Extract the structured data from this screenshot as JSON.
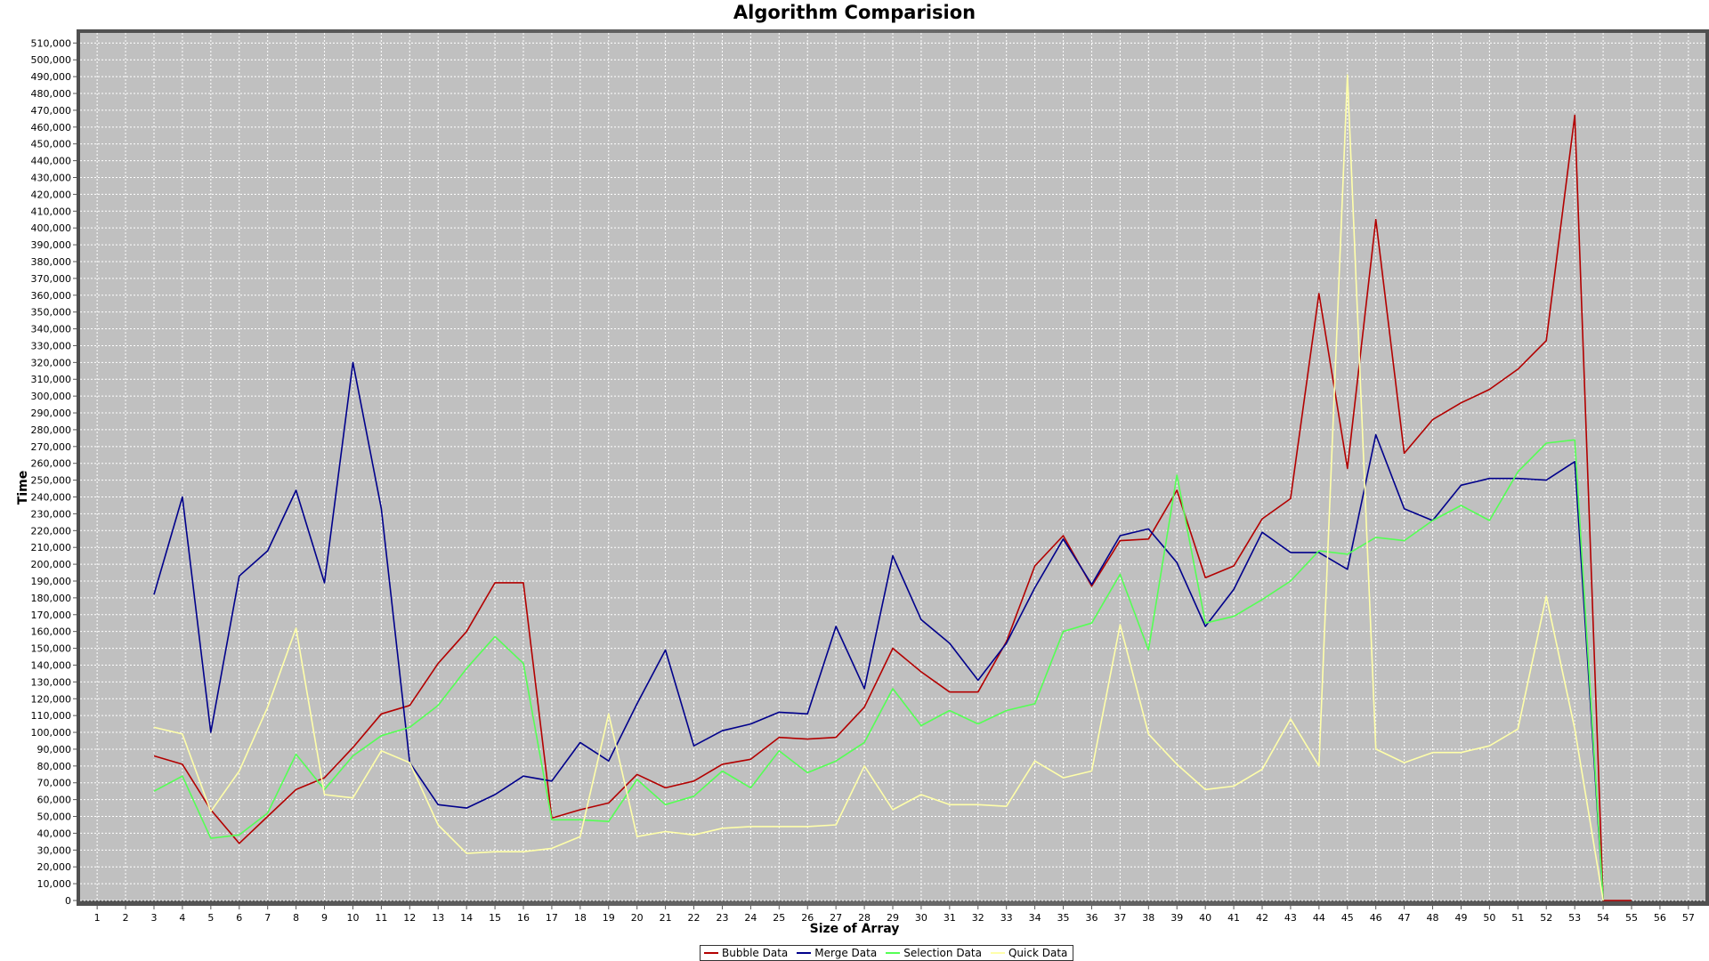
{
  "chart_data": {
    "type": "line",
    "title": "Algorithm Comparision",
    "xlabel": "Size of Array",
    "ylabel": "Time",
    "x": [
      1,
      2,
      3,
      4,
      5,
      6,
      7,
      8,
      9,
      10,
      11,
      12,
      13,
      14,
      15,
      16,
      17,
      18,
      19,
      20,
      21,
      22,
      23,
      24,
      25,
      26,
      27,
      28,
      29,
      30,
      31,
      32,
      33,
      34,
      35,
      36,
      37,
      38,
      39,
      40,
      41,
      42,
      43,
      44,
      45,
      46,
      47,
      48,
      49,
      50,
      51,
      52,
      53,
      54,
      55,
      56,
      57
    ],
    "xlim": [
      0.4,
      57.6
    ],
    "ylim": [
      0,
      516000
    ],
    "ytick_step": 10000,
    "grid": true,
    "legend_position": "bottom-center",
    "series": [
      {
        "name": "Bubble Data",
        "color": "#b30000",
        "x": [
          3,
          4,
          5,
          6,
          7,
          8,
          9,
          10,
          11,
          12,
          13,
          14,
          15,
          16,
          17,
          18,
          19,
          20,
          21,
          22,
          23,
          24,
          25,
          26,
          27,
          28,
          29,
          30,
          31,
          32,
          33,
          34,
          35,
          36,
          37,
          38,
          39,
          40,
          41,
          42,
          43,
          44,
          45,
          46,
          47,
          48,
          49,
          50,
          51,
          52,
          53,
          54,
          55
        ],
        "values": [
          86000,
          81000,
          54000,
          34000,
          50000,
          66000,
          73000,
          91000,
          111000,
          116000,
          141000,
          160000,
          189000,
          189000,
          49000,
          54000,
          58000,
          75000,
          67000,
          71000,
          81000,
          84000,
          97000,
          96000,
          97000,
          115000,
          150000,
          136000,
          124000,
          124000,
          154000,
          199000,
          217000,
          187000,
          214000,
          215000,
          244000,
          192000,
          199000,
          227000,
          239000,
          361000,
          257000,
          405000,
          266000,
          286000,
          296000,
          304000,
          316000,
          333000,
          467000,
          0,
          0
        ]
      },
      {
        "name": "Merge Data",
        "color": "#00008b",
        "x": [
          3,
          4,
          5,
          6,
          7,
          8,
          9,
          10,
          11,
          12,
          13,
          14,
          15,
          16,
          17,
          18,
          19,
          20,
          21,
          22,
          23,
          24,
          25,
          26,
          27,
          28,
          29,
          30,
          31,
          32,
          33,
          34,
          35,
          36,
          37,
          38,
          39,
          40,
          41,
          42,
          43,
          44,
          45,
          46,
          47,
          48,
          49,
          50,
          51,
          52,
          53,
          54
        ],
        "values": [
          182000,
          240000,
          100000,
          193000,
          208000,
          244000,
          189000,
          320000,
          233000,
          82000,
          57000,
          55000,
          63000,
          74000,
          71000,
          94000,
          83000,
          117000,
          149000,
          92000,
          101000,
          105000,
          112000,
          111000,
          163000,
          126000,
          205000,
          167000,
          153000,
          131000,
          153000,
          186000,
          215000,
          188000,
          217000,
          221000,
          201000,
          163000,
          185000,
          219000,
          207000,
          207000,
          197000,
          277000,
          233000,
          226000,
          247000,
          251000,
          251000,
          250000,
          261000,
          0
        ]
      },
      {
        "name": "Selection Data",
        "color": "#55ff55",
        "x": [
          3,
          4,
          5,
          6,
          7,
          8,
          9,
          10,
          11,
          12,
          13,
          14,
          15,
          16,
          17,
          18,
          19,
          20,
          21,
          22,
          23,
          24,
          25,
          26,
          27,
          28,
          29,
          30,
          31,
          32,
          33,
          34,
          35,
          36,
          37,
          38,
          39,
          40,
          41,
          42,
          43,
          44,
          45,
          46,
          47,
          48,
          49,
          50,
          51,
          52,
          53,
          54
        ],
        "values": [
          65000,
          74000,
          37000,
          39000,
          52000,
          87000,
          66000,
          86000,
          98000,
          103000,
          116000,
          138000,
          157000,
          141000,
          48000,
          48000,
          47000,
          72000,
          57000,
          62000,
          77000,
          67000,
          89000,
          76000,
          83000,
          94000,
          126000,
          104000,
          113000,
          105000,
          113000,
          117000,
          160000,
          165000,
          194000,
          149000,
          253000,
          165000,
          169000,
          179000,
          190000,
          208000,
          206000,
          216000,
          214000,
          226000,
          235000,
          226000,
          255000,
          272000,
          274000,
          0
        ]
      },
      {
        "name": "Quick Data",
        "color": "#ffffaa",
        "x": [
          3,
          4,
          5,
          6,
          7,
          8,
          9,
          10,
          11,
          12,
          13,
          14,
          15,
          16,
          17,
          18,
          19,
          20,
          21,
          22,
          23,
          24,
          25,
          26,
          27,
          28,
          29,
          30,
          31,
          32,
          33,
          34,
          35,
          36,
          37,
          38,
          39,
          40,
          41,
          42,
          43,
          44,
          45,
          46,
          47,
          48,
          49,
          50,
          51,
          52,
          53,
          54
        ],
        "values": [
          103000,
          99000,
          53000,
          77000,
          115000,
          162000,
          63000,
          61000,
          89000,
          82000,
          45000,
          28000,
          29000,
          29000,
          31000,
          38000,
          111000,
          38000,
          41000,
          39000,
          43000,
          44000,
          44000,
          44000,
          45000,
          80000,
          54000,
          63000,
          57000,
          57000,
          56000,
          83000,
          73000,
          77000,
          164000,
          99000,
          81000,
          66000,
          68000,
          78000,
          108000,
          80000,
          491000,
          90000,
          82000,
          88000,
          88000,
          92000,
          102000,
          181000,
          102000,
          0
        ]
      }
    ]
  }
}
